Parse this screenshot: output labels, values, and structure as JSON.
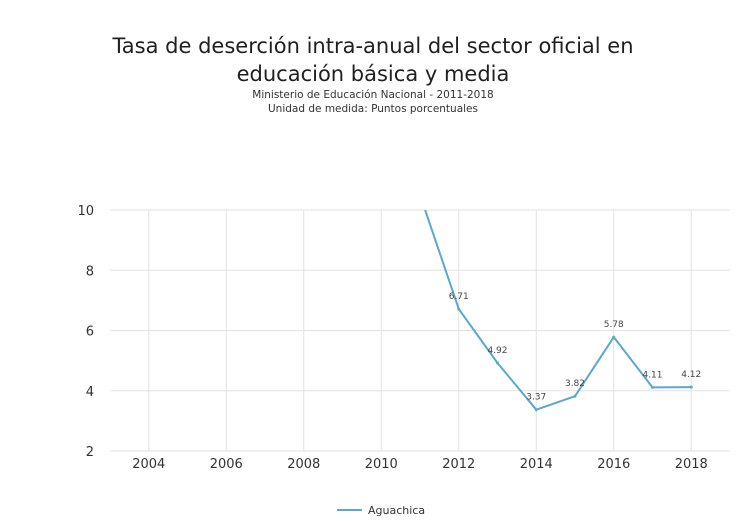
{
  "chart_data": {
    "type": "line",
    "title_line1": "Tasa de deserción intra-anual del sector oficial en",
    "title_line2": "educación básica y media",
    "subtitle1": "Ministerio de Educación Nacional - 2011-2018",
    "subtitle2": "Unidad de medida: Puntos porcentuales",
    "xlabel": "",
    "ylabel": "",
    "xlim": [
      2003,
      2019
    ],
    "ylim": [
      2,
      10
    ],
    "x_ticks": [
      "2004",
      "2006",
      "2008",
      "2010",
      "2012",
      "2014",
      "2016",
      "2018"
    ],
    "y_ticks": [
      "2",
      "4",
      "6",
      "8",
      "10"
    ],
    "grid": true,
    "legend_position": "bottom",
    "series": [
      {
        "name": "Aguachica",
        "color": "#5aa9cc",
        "x": [
          2011,
          2012,
          2013,
          2014,
          2015,
          2016,
          2017,
          2018
        ],
        "values": [
          10.5,
          6.71,
          4.92,
          3.37,
          3.82,
          5.78,
          4.11,
          4.12
        ],
        "labels": [
          "",
          "6.71",
          "4.92",
          "3.37",
          "3.82",
          "5.78",
          "4.11",
          "4.12"
        ]
      }
    ]
  }
}
